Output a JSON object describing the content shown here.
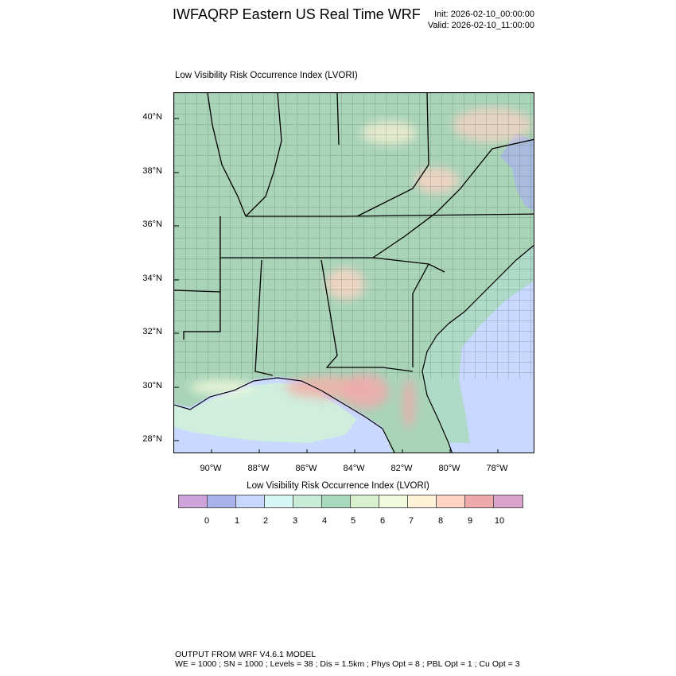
{
  "header": {
    "title": "IWFAQRP Eastern US Real Time WRF",
    "init": "Init: 2026-02-10_00:00:00",
    "valid": "Valid: 2026-02-10_11:00:00"
  },
  "map": {
    "title": "Low Visibility Risk Occurrence Index   (LVORI)",
    "lat_labels": [
      "40°N",
      "38°N",
      "36°N",
      "34°N",
      "32°N",
      "30°N",
      "28°N"
    ],
    "lon_labels": [
      "90°W",
      "88°W",
      "86°W",
      "84°W",
      "82°W",
      "80°W",
      "78°W"
    ],
    "land_color": "#b7dcc4",
    "ocean_color": "#c8d8ff",
    "state_line_color": "#000000"
  },
  "colorbar": {
    "title": "Low Visibility Risk Occurrence Index  (LVORI)",
    "colors": [
      "#cfa3dc",
      "#aab2ec",
      "#c8d7ff",
      "#d6f7f4",
      "#c9ecd8",
      "#a9d9bc",
      "#d8f0cd",
      "#f1fadc",
      "#fff2d6",
      "#ffd3c4",
      "#eeaaaa",
      "#d9a3cc"
    ],
    "labels": [
      "0",
      "1",
      "2",
      "3",
      "4",
      "5",
      "6",
      "7",
      "8",
      "9",
      "10"
    ]
  },
  "footer": {
    "line1": "OUTPUT FROM WRF V4.6.1 MODEL",
    "line2": "WE = 1000 ; SN = 1000 ; Levels = 38 ; Dis = 1.5km ; Phys Opt = 8 ; PBL Opt = 1 ; Cu Opt = 3"
  }
}
